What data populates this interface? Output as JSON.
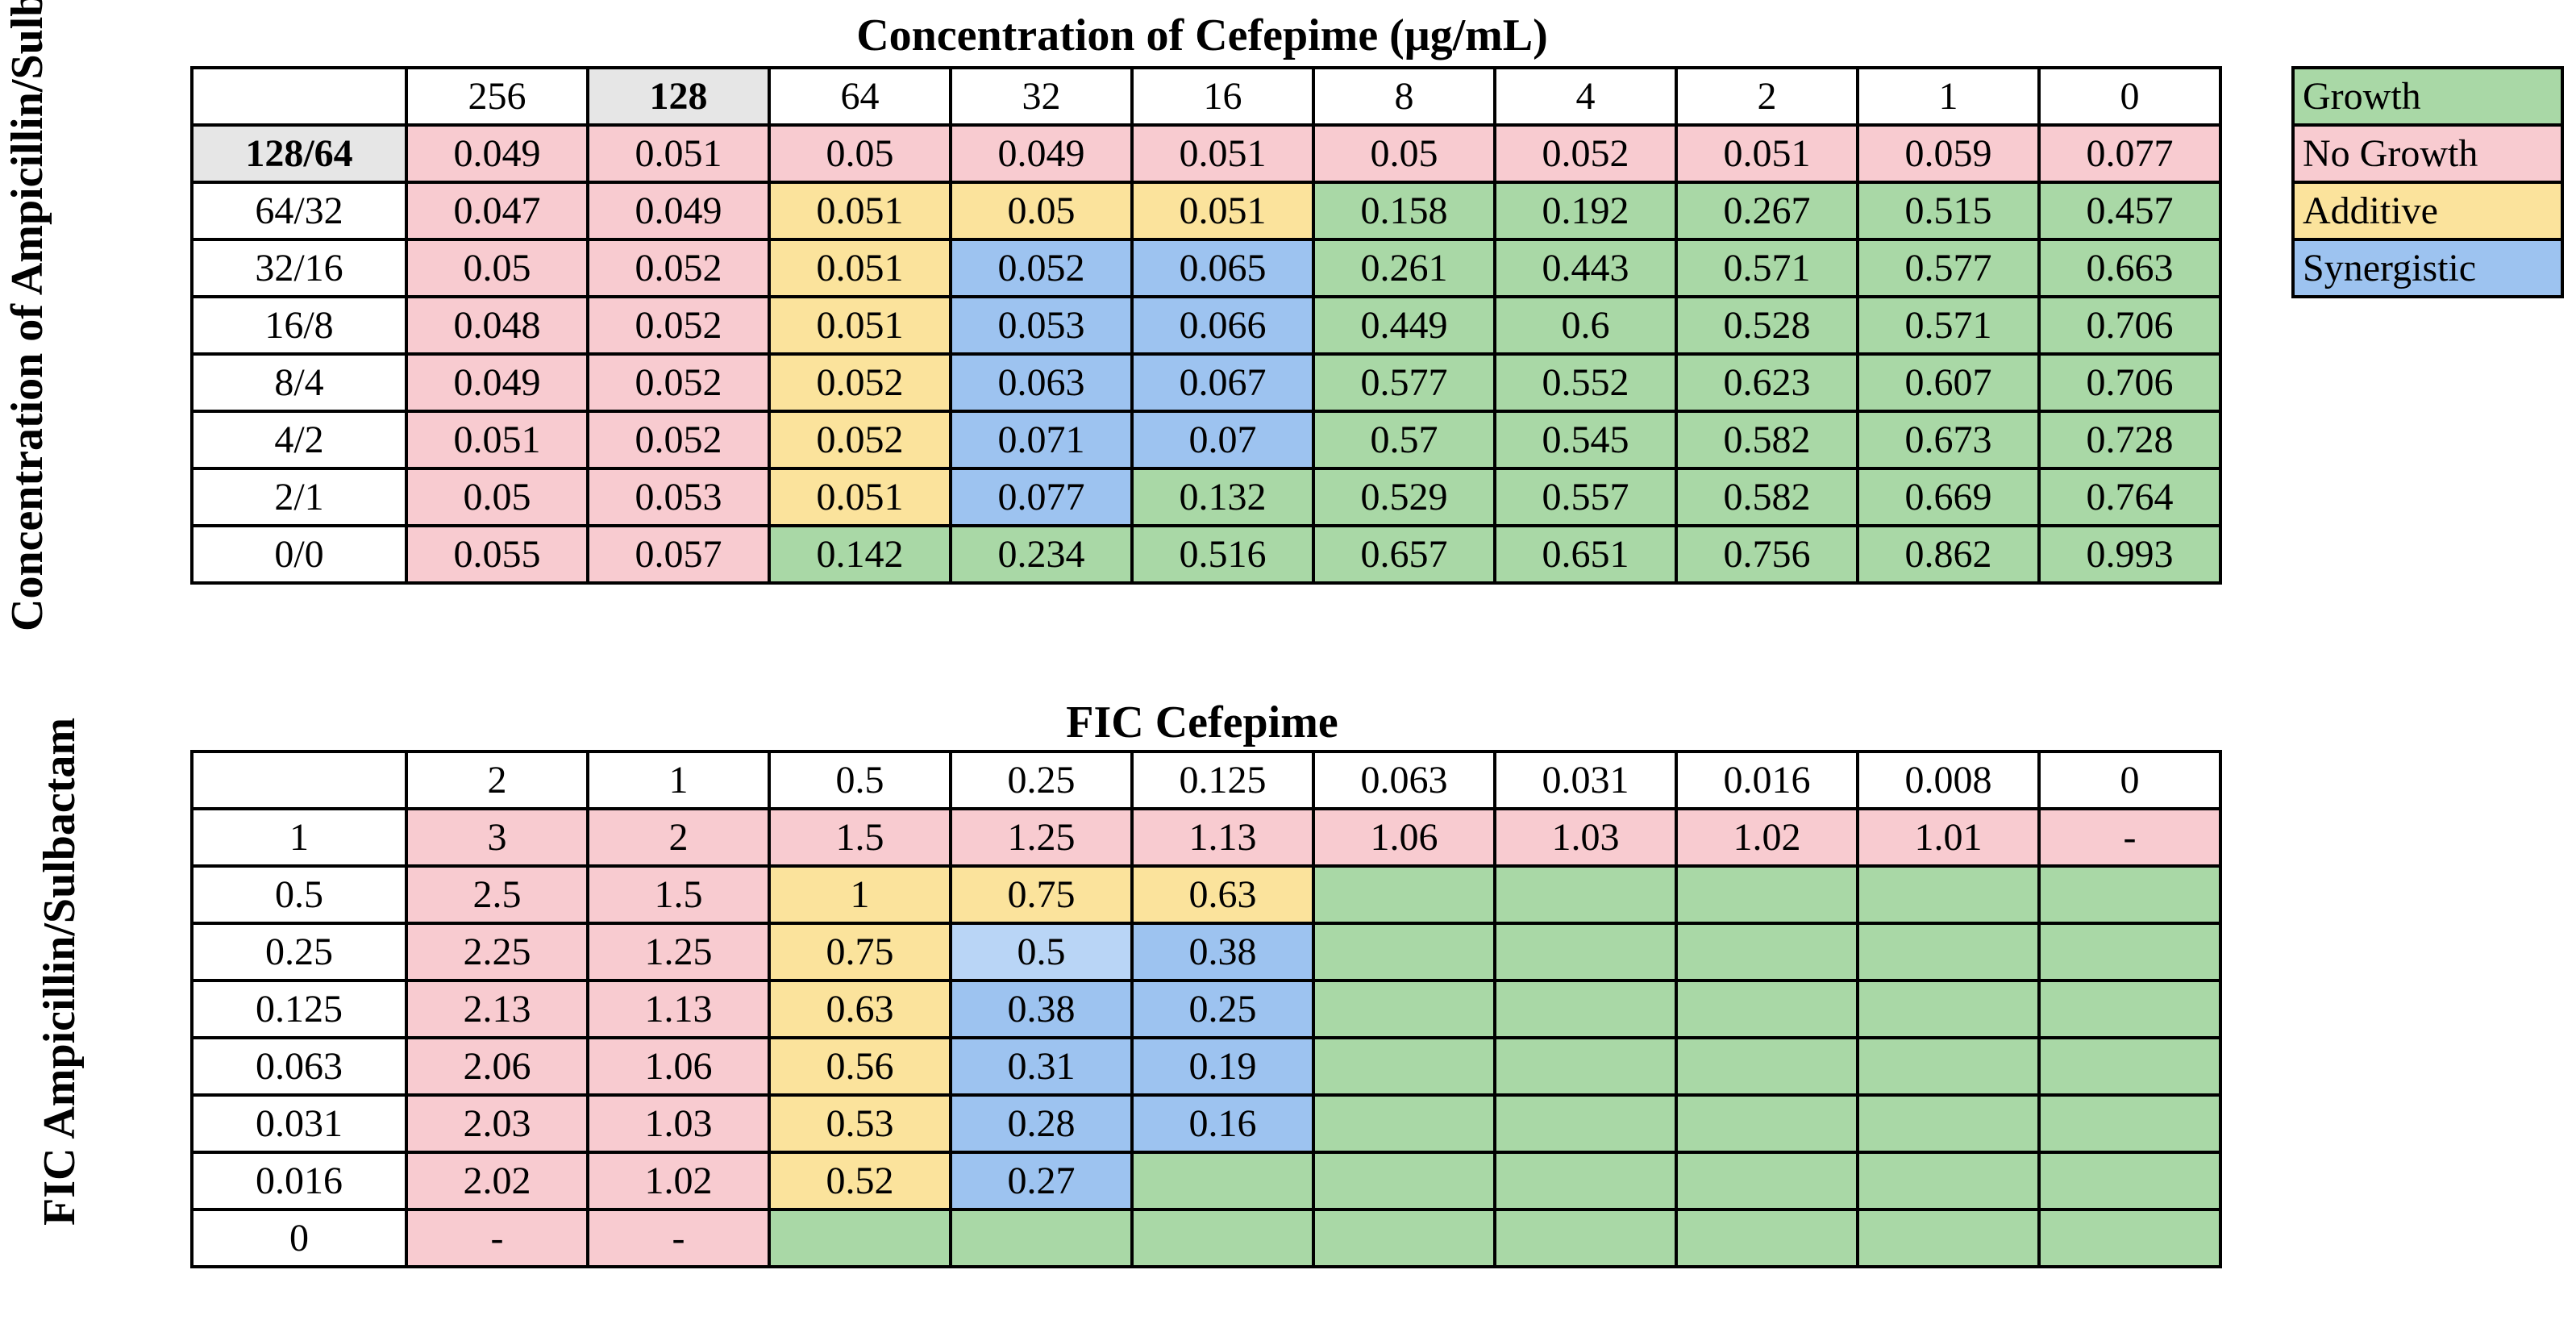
{
  "top_table": {
    "title": "Concentration of Cefepime (μg/mL)",
    "row_axis_title": "Concentration of Ampicillin/Sulbactam (μg/mL)",
    "column_headers": [
      "256",
      "128",
      "64",
      "32",
      "16",
      "8",
      "4",
      "2",
      "1",
      "0"
    ],
    "rows": [
      {
        "label": "128/64",
        "values": [
          "0.049",
          "0.051",
          "0.05",
          "0.049",
          "0.051",
          "0.05",
          "0.052",
          "0.051",
          "0.059",
          "0.077"
        ],
        "colors": [
          "r",
          "r",
          "r",
          "r",
          "r",
          "r",
          "r",
          "r",
          "r",
          "r"
        ]
      },
      {
        "label": "64/32",
        "values": [
          "0.047",
          "0.049",
          "0.051",
          "0.05",
          "0.051",
          "0.158",
          "0.192",
          "0.267",
          "0.515",
          "0.457"
        ],
        "colors": [
          "r",
          "r",
          "y",
          "y",
          "y",
          "g",
          "g",
          "g",
          "g",
          "g"
        ]
      },
      {
        "label": "32/16",
        "values": [
          "0.05",
          "0.052",
          "0.051",
          "0.052",
          "0.065",
          "0.261",
          "0.443",
          "0.571",
          "0.577",
          "0.663"
        ],
        "colors": [
          "r",
          "r",
          "y",
          "b",
          "b",
          "g",
          "g",
          "g",
          "g",
          "g"
        ]
      },
      {
        "label": "16/8",
        "values": [
          "0.048",
          "0.052",
          "0.051",
          "0.053",
          "0.066",
          "0.449",
          "0.6",
          "0.528",
          "0.571",
          "0.706"
        ],
        "colors": [
          "r",
          "r",
          "y",
          "b",
          "b",
          "g",
          "g",
          "g",
          "g",
          "g"
        ]
      },
      {
        "label": "8/4",
        "values": [
          "0.049",
          "0.052",
          "0.052",
          "0.063",
          "0.067",
          "0.577",
          "0.552",
          "0.623",
          "0.607",
          "0.706"
        ],
        "colors": [
          "r",
          "r",
          "y",
          "b",
          "b",
          "g",
          "g",
          "g",
          "g",
          "g"
        ]
      },
      {
        "label": "4/2",
        "values": [
          "0.051",
          "0.052",
          "0.052",
          "0.071",
          "0.07",
          "0.57",
          "0.545",
          "0.582",
          "0.673",
          "0.728"
        ],
        "colors": [
          "r",
          "r",
          "y",
          "b",
          "b",
          "g",
          "g",
          "g",
          "g",
          "g"
        ]
      },
      {
        "label": "2/1",
        "values": [
          "0.05",
          "0.053",
          "0.051",
          "0.077",
          "0.132",
          "0.529",
          "0.557",
          "0.582",
          "0.669",
          "0.764"
        ],
        "colors": [
          "r",
          "r",
          "y",
          "b",
          "g",
          "g",
          "g",
          "g",
          "g",
          "g"
        ]
      },
      {
        "label": "0/0",
        "values": [
          "0.055",
          "0.057",
          "0.142",
          "0.234",
          "0.516",
          "0.657",
          "0.651",
          "0.756",
          "0.862",
          "0.993"
        ],
        "colors": [
          "r",
          "r",
          "g",
          "g",
          "g",
          "g",
          "g",
          "g",
          "g",
          "g"
        ]
      }
    ]
  },
  "bottom_table": {
    "title": "FIC Cefepime",
    "row_axis_title": "FIC Ampicillin/Sulbactam",
    "column_headers": [
      "2",
      "1",
      "0.5",
      "0.25",
      "0.125",
      "0.063",
      "0.031",
      "0.016",
      "0.008",
      "0"
    ],
    "rows": [
      {
        "label": "1",
        "values": [
          "3",
          "2",
          "1.5",
          "1.25",
          "1.13",
          "1.06",
          "1.03",
          "1.02",
          "1.01",
          "-"
        ],
        "colors": [
          "r",
          "r",
          "r",
          "r",
          "r",
          "r",
          "r",
          "r",
          "r",
          "r"
        ]
      },
      {
        "label": "0.5",
        "values": [
          "2.5",
          "1.5",
          "1",
          "0.75",
          "0.63",
          "",
          "",
          "",
          "",
          ""
        ],
        "colors": [
          "r",
          "r",
          "y",
          "y",
          "y",
          "g",
          "g",
          "g",
          "g",
          "g"
        ]
      },
      {
        "label": "0.25",
        "values": [
          "2.25",
          "1.25",
          "0.75",
          "0.5",
          "0.38",
          "",
          "",
          "",
          "",
          ""
        ],
        "colors": [
          "r",
          "r",
          "y",
          "lb",
          "b",
          "g",
          "g",
          "g",
          "g",
          "g"
        ]
      },
      {
        "label": "0.125",
        "values": [
          "2.13",
          "1.13",
          "0.63",
          "0.38",
          "0.25",
          "",
          "",
          "",
          "",
          ""
        ],
        "colors": [
          "r",
          "r",
          "y",
          "b",
          "b",
          "g",
          "g",
          "g",
          "g",
          "g"
        ]
      },
      {
        "label": "0.063",
        "values": [
          "2.06",
          "1.06",
          "0.56",
          "0.31",
          "0.19",
          "",
          "",
          "",
          "",
          ""
        ],
        "colors": [
          "r",
          "r",
          "y",
          "b",
          "b",
          "g",
          "g",
          "g",
          "g",
          "g"
        ]
      },
      {
        "label": "0.031",
        "values": [
          "2.03",
          "1.03",
          "0.53",
          "0.28",
          "0.16",
          "",
          "",
          "",
          "",
          ""
        ],
        "colors": [
          "r",
          "r",
          "y",
          "b",
          "b",
          "g",
          "g",
          "g",
          "g",
          "g"
        ]
      },
      {
        "label": "0.016",
        "values": [
          "2.02",
          "1.02",
          "0.52",
          "0.27",
          "",
          "",
          "",
          "",
          "",
          ""
        ],
        "colors": [
          "r",
          "r",
          "y",
          "b",
          "g",
          "g",
          "g",
          "g",
          "g",
          "g"
        ]
      },
      {
        "label": "0",
        "values": [
          "-",
          "-",
          "",
          "",
          "",
          "",
          "",
          "",
          "",
          ""
        ],
        "colors": [
          "r",
          "r",
          "g",
          "g",
          "g",
          "g",
          "g",
          "g",
          "g",
          "g"
        ]
      }
    ]
  },
  "legend": [
    {
      "label": "Growth",
      "color": "#a9d8a6"
    },
    {
      "label": "No Growth",
      "color": "#f8cbd0"
    },
    {
      "label": "Additive",
      "color": "#fbe39c"
    },
    {
      "label": "Synergistic",
      "color": "#9dc3f0"
    }
  ],
  "highlighted": {
    "column_header": "128",
    "row_label": "128/64"
  }
}
